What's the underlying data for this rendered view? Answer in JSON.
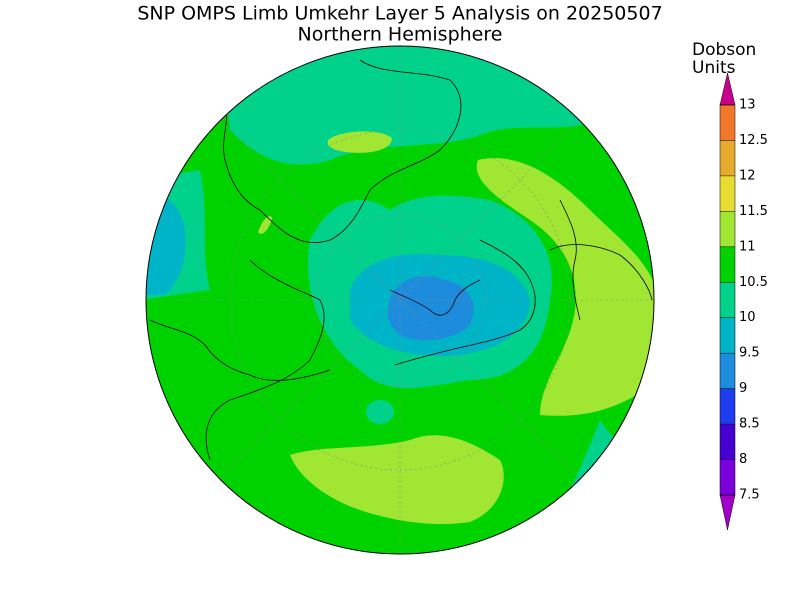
{
  "header": {
    "title": "SNP OMPS Limb Umkehr Layer 5 Analysis on 20250507",
    "subtitle": "Northern Hemisphere"
  },
  "colorbar": {
    "label": [
      "Dobson",
      "Units"
    ],
    "ticks": [
      7.5,
      8,
      8.5,
      9,
      9.5,
      10,
      10.5,
      11,
      11.5,
      12,
      12.5,
      13
    ],
    "colors": [
      "#7a00dc",
      "#4600d2",
      "#1e3cf0",
      "#1e8cdc",
      "#00b4c8",
      "#00d28c",
      "#00d200",
      "#a0e632",
      "#e6dc32",
      "#e6aa2d",
      "#f07828",
      "#f00000"
    ],
    "under_color": "#a000c8",
    "over_color": "#c8008c"
  }
}
